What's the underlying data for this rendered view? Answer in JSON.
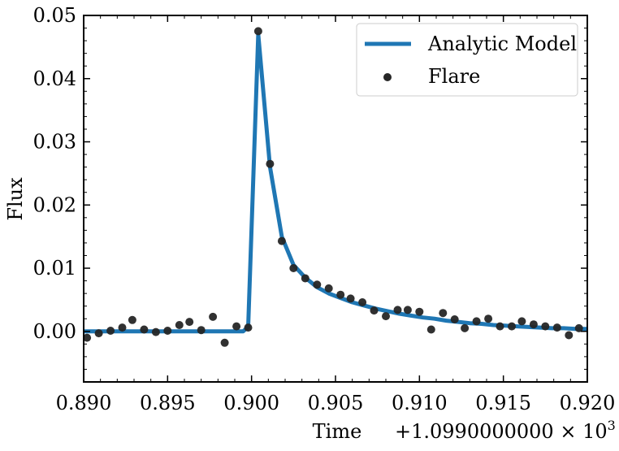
{
  "chart_data": {
    "type": "scatter",
    "xlabel": "Time",
    "ylabel": "Flux",
    "x_offset_label": "+1.0990000000 × 10",
    "x_offset_exponent": "3",
    "xlim": [
      0.89,
      0.92
    ],
    "ylim": [
      -0.008,
      0.05
    ],
    "x_ticks": [
      "0.890",
      "0.895",
      "0.900",
      "0.905",
      "0.910",
      "0.915",
      "0.920"
    ],
    "y_ticks": [
      "0.00",
      "0.01",
      "0.02",
      "0.03",
      "0.04",
      "0.05"
    ],
    "grid": false,
    "legend_position": "top-right",
    "series": [
      {
        "name": "Analytic Model",
        "kind": "line",
        "color": "#1f77b4",
        "x": [
          0.89,
          0.8995,
          0.8998,
          0.9004,
          0.9011,
          0.9018,
          0.9025,
          0.9032,
          0.9039,
          0.9046,
          0.9053,
          0.906,
          0.9067,
          0.9074,
          0.9081,
          0.9088,
          0.9095,
          0.9102,
          0.9109,
          0.9116,
          0.9123,
          0.913,
          0.9137,
          0.9144,
          0.9151,
          0.9158,
          0.9165,
          0.9172,
          0.9179,
          0.9186,
          0.9193,
          0.92
        ],
        "y": [
          0.0,
          0.0,
          0.0007,
          0.047,
          0.026,
          0.015,
          0.0105,
          0.0085,
          0.007,
          0.006,
          0.0053,
          0.0046,
          0.0041,
          0.0036,
          0.0032,
          0.0028,
          0.0025,
          0.0022,
          0.002,
          0.0017,
          0.0015,
          0.0013,
          0.0012,
          0.001,
          0.0009,
          0.0008,
          0.0007,
          0.0006,
          0.0005,
          0.0005,
          0.0004,
          0.0004
        ]
      },
      {
        "name": "Flare",
        "kind": "scatter",
        "color": "#262626",
        "x": [
          0.8902,
          0.8909,
          0.8916,
          0.8923,
          0.8929,
          0.8936,
          0.8943,
          0.895,
          0.8957,
          0.8963,
          0.897,
          0.8977,
          0.8984,
          0.8991,
          0.8998,
          0.9004,
          0.9011,
          0.9018,
          0.9025,
          0.9032,
          0.9039,
          0.9046,
          0.9053,
          0.9059,
          0.9066,
          0.9073,
          0.908,
          0.9087,
          0.9093,
          0.91,
          0.9107,
          0.9114,
          0.9121,
          0.9127,
          0.9134,
          0.9141,
          0.9148,
          0.9155,
          0.9161,
          0.9168,
          0.9175,
          0.9182,
          0.9189,
          0.9195
        ],
        "y": [
          -0.001,
          -0.0003,
          0.0001,
          0.0006,
          0.0018,
          0.0003,
          -0.0001,
          0.0001,
          0.001,
          0.0015,
          0.0002,
          0.0023,
          -0.0018,
          0.0008,
          0.0006,
          0.0475,
          0.0265,
          0.0143,
          0.01,
          0.0084,
          0.0074,
          0.0068,
          0.0058,
          0.0052,
          0.0046,
          0.0033,
          0.0024,
          0.0034,
          0.0034,
          0.0031,
          0.0003,
          0.0029,
          0.0019,
          0.0005,
          0.0016,
          0.002,
          0.0008,
          0.0008,
          0.0016,
          0.0011,
          0.0008,
          0.0006,
          -0.0006,
          0.0005
        ]
      }
    ]
  }
}
